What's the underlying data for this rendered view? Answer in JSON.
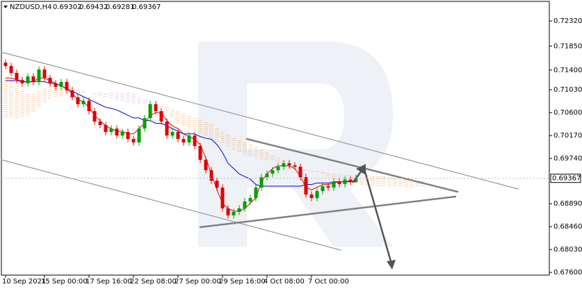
{
  "chart_data": {
    "type": "candlestick",
    "symbol": "NZDUSD,H4",
    "header_ohlc": [
      0.69302,
      0.69432,
      0.69281,
      0.69367
    ],
    "last_price": 0.69367,
    "categories": [
      "10 Sep 2021",
      null,
      null,
      null,
      null,
      null,
      null,
      "15 Sep 00:00",
      null,
      null,
      null,
      null,
      null,
      null,
      null,
      "17 Sep 16:00",
      null,
      null,
      null,
      null,
      null,
      null,
      null,
      "22 Sep 08:00",
      null,
      null,
      null,
      null,
      null,
      null,
      null,
      "27 Sep 00:00",
      null,
      null,
      null,
      null,
      null,
      null,
      null,
      "29 Sep 16:00",
      null,
      null,
      null,
      null,
      null,
      null,
      null,
      "4 Oct 08:00",
      null,
      null,
      null,
      null,
      null,
      null,
      null,
      "7 Oct 00:00",
      null,
      null,
      null,
      null,
      null,
      null,
      null,
      null,
      null,
      null,
      null,
      null,
      null,
      null,
      null,
      null,
      null,
      null,
      null,
      null
    ],
    "open": [
      0.7154,
      0.71475,
      0.71345,
      0.71214,
      0.71149,
      0.7128,
      0.71175,
      0.7141,
      0.71253,
      0.71149,
      0.71084,
      0.71175,
      0.71019,
      0.70888,
      0.70758,
      0.70823,
      0.70628,
      0.70432,
      0.70367,
      0.70236,
      0.70301,
      0.70171,
      0.70236,
      0.70106,
      0.70041,
      0.70301,
      0.70497,
      0.70758,
      0.70628,
      0.70432,
      0.70171,
      0.70236,
      0.70106,
      0.70041,
      0.70171,
      0.69975,
      0.69715,
      0.69519,
      0.69323,
      0.69193,
      0.68802,
      0.68671,
      0.68736,
      0.68802,
      0.68932,
      0.68997,
      0.69193,
      0.69389,
      0.69454,
      0.69519,
      0.69584,
      0.6965,
      0.6961,
      0.69584,
      0.69389,
      0.69062,
      0.68997,
      0.69127,
      0.69219,
      0.69193,
      0.69297,
      0.69258,
      0.69342,
      0.69302,
      null,
      null,
      null,
      null,
      null,
      null,
      null,
      null,
      null,
      null,
      null,
      null
    ],
    "high": [
      0.716,
      0.71535,
      0.71405,
      0.71274,
      0.7134,
      0.7134,
      0.7147,
      0.7147,
      0.71313,
      0.71209,
      0.71235,
      0.71235,
      0.71079,
      0.70948,
      0.70883,
      0.70883,
      0.70688,
      0.70492,
      0.70427,
      0.70361,
      0.70361,
      0.70296,
      0.70296,
      0.70166,
      0.70361,
      0.70557,
      0.70818,
      0.70818,
      0.70688,
      0.70492,
      0.70296,
      0.70296,
      0.70166,
      0.70231,
      0.70231,
      0.70035,
      0.69775,
      0.69579,
      0.69383,
      0.69253,
      0.68862,
      0.68796,
      0.68862,
      0.68992,
      0.69057,
      0.69253,
      0.69449,
      0.69514,
      0.69579,
      0.69644,
      0.6971,
      0.6971,
      0.6967,
      0.69644,
      0.69449,
      0.69122,
      0.69187,
      0.69279,
      0.69279,
      0.69357,
      0.69357,
      0.69402,
      0.69402,
      0.69432,
      null,
      null,
      null,
      null,
      null,
      null,
      null,
      null,
      null,
      null,
      null,
      null
    ],
    "low": [
      0.71415,
      0.71285,
      0.71154,
      0.71089,
      0.71089,
      0.71115,
      0.71115,
      0.71193,
      0.71089,
      0.71024,
      0.71024,
      0.70959,
      0.70828,
      0.70698,
      0.70698,
      0.70568,
      0.70372,
      0.70307,
      0.70176,
      0.70176,
      0.70111,
      0.70111,
      0.70046,
      0.69981,
      0.69981,
      0.70241,
      0.70437,
      0.70568,
      0.70372,
      0.70111,
      0.70111,
      0.70046,
      0.69981,
      0.69981,
      0.69915,
      0.69655,
      0.69459,
      0.69263,
      0.69133,
      0.68742,
      0.68611,
      0.68611,
      0.68676,
      0.68742,
      0.68872,
      0.68937,
      0.69133,
      0.69329,
      0.69394,
      0.69459,
      0.69524,
      0.6955,
      0.69524,
      0.69329,
      0.69002,
      0.68937,
      0.68937,
      0.69067,
      0.69133,
      0.69133,
      0.69198,
      0.69198,
      0.69237,
      0.69281,
      null,
      null,
      null,
      null,
      null,
      null,
      null,
      null,
      null,
      null,
      null,
      null
    ],
    "close": [
      0.71475,
      0.71345,
      0.71214,
      0.71149,
      0.7128,
      0.71175,
      0.7141,
      0.71253,
      0.71149,
      0.71084,
      0.71175,
      0.71019,
      0.70888,
      0.70758,
      0.70823,
      0.70628,
      0.70432,
      0.70367,
      0.70236,
      0.70301,
      0.70171,
      0.70236,
      0.70106,
      0.70041,
      0.70301,
      0.70497,
      0.70758,
      0.70628,
      0.70432,
      0.70171,
      0.70236,
      0.70106,
      0.70041,
      0.70171,
      0.69975,
      0.69715,
      0.69519,
      0.69323,
      0.69193,
      0.68802,
      0.68671,
      0.68736,
      0.68802,
      0.68932,
      0.68997,
      0.69193,
      0.69389,
      0.69454,
      0.69519,
      0.69584,
      0.6965,
      0.6961,
      0.69584,
      0.69389,
      0.69062,
      0.68997,
      0.69127,
      0.69219,
      0.69193,
      0.69297,
      0.69258,
      0.69342,
      0.69297,
      0.69367,
      null,
      null,
      null,
      null,
      null,
      null,
      null,
      null,
      null,
      null,
      null,
      null
    ],
    "up_color": "#00a000",
    "down_color": "#e00000",
    "lines": [
      {
        "color": "#e00000",
        "values": [
          0.7125,
          0.7125,
          0.7122,
          0.7118,
          0.7118,
          0.7118,
          0.7125,
          0.7125,
          0.712,
          0.7115,
          0.711,
          0.7105,
          0.7095,
          0.7085,
          0.708,
          0.707,
          0.7055,
          0.7045,
          0.7035,
          0.703,
          0.7025,
          0.7025,
          0.702,
          0.702,
          0.703,
          0.704,
          0.7055,
          0.706,
          0.706,
          0.7045,
          0.7035,
          0.703,
          0.702,
          0.7015,
          0.701,
          0.7,
          0.6975,
          0.6945,
          0.6915,
          0.689,
          0.688,
          0.6875,
          0.6875,
          0.688,
          0.689,
          0.69,
          0.693,
          0.6945,
          0.6955,
          0.696,
          0.696,
          0.696,
          0.6955,
          0.694,
          0.692,
          0.6915,
          0.692,
          0.6925,
          0.6925,
          0.6928,
          0.693,
          0.693,
          0.6932,
          0.6932,
          null,
          null,
          null,
          null,
          null,
          null,
          null,
          null,
          null,
          null,
          null,
          null
        ]
      },
      {
        "color": "#0000e0",
        "values": [
          0.712,
          0.712,
          0.712,
          0.7118,
          0.7118,
          0.7118,
          0.7118,
          0.7118,
          0.7115,
          0.7115,
          0.711,
          0.7105,
          0.71,
          0.7095,
          0.709,
          0.7085,
          0.708,
          0.7075,
          0.707,
          0.7068,
          0.7065,
          0.706,
          0.7055,
          0.705,
          0.705,
          0.7045,
          0.7045,
          0.704,
          0.704,
          0.7035,
          0.703,
          0.7025,
          0.702,
          0.702,
          0.702,
          0.7015,
          0.7012,
          0.701,
          0.7,
          0.6985,
          0.6965,
          0.6955,
          0.6945,
          0.694,
          0.6935,
          0.6925,
          0.6922,
          0.6922,
          0.6922,
          0.6922,
          0.6922,
          0.6922,
          0.6922,
          0.6922,
          0.6925,
          0.6925,
          0.6928,
          0.6928,
          0.6928,
          0.693,
          0.693,
          0.693,
          0.693,
          0.693,
          null,
          null,
          null,
          null,
          null,
          null,
          null,
          null,
          null,
          null,
          null,
          null
        ]
      }
    ],
    "cloud": {
      "up_color": "#f4a460",
      "down_color": "#dda0dd",
      "span_a": [
        0.7125,
        0.712,
        0.711,
        0.71,
        0.7095,
        0.7095,
        0.71,
        0.7105,
        0.7108,
        0.711,
        0.711,
        0.7108,
        0.7105,
        0.7102,
        0.71,
        0.7098,
        0.7095,
        0.7092,
        0.709,
        0.7088,
        0.7085,
        0.7082,
        0.708,
        0.7078,
        0.7078,
        0.7078,
        0.7076,
        0.7074,
        0.7072,
        0.707,
        0.7066,
        0.7062,
        0.7058,
        0.7054,
        0.705,
        0.7046,
        0.7042,
        0.7038,
        0.703,
        0.7024,
        0.7018,
        0.7012,
        0.7008,
        0.7004,
        0.7,
        0.6995,
        0.699,
        0.6985,
        0.698,
        0.6975,
        0.697,
        0.6965,
        0.696,
        0.6955,
        0.6952,
        0.695,
        0.695,
        0.6948,
        0.6946,
        0.6945,
        0.6944,
        0.6943,
        0.6942,
        0.6942,
        0.6942,
        0.6942,
        0.6941,
        0.694,
        0.694,
        0.6938,
        0.6936,
        0.6935,
        0.6934,
        0.6933,
        0.6932,
        0.6931
      ],
      "span_b": [
        0.705,
        0.705,
        0.705,
        0.7052,
        0.7055,
        0.706,
        0.707,
        0.708,
        0.7085,
        0.7088,
        0.709,
        0.7092,
        0.7095,
        0.7096,
        0.7098,
        0.7098,
        0.7098,
        0.7098,
        0.7098,
        0.7098,
        0.7098,
        0.7098,
        0.7097,
        0.7095,
        0.709,
        0.7085,
        0.708,
        0.7075,
        0.707,
        0.706,
        0.705,
        0.704,
        0.7035,
        0.703,
        0.7025,
        0.702,
        0.7015,
        0.701,
        0.7005,
        0.7,
        0.6995,
        0.699,
        0.6985,
        0.698,
        0.6978,
        0.6975,
        0.6972,
        0.697,
        0.6968,
        0.6966,
        0.6964,
        0.6962,
        0.696,
        0.6958,
        0.6955,
        0.6952,
        0.6948,
        0.6944,
        0.694,
        0.6936,
        0.6933,
        0.693,
        0.6928,
        0.6926,
        0.6925,
        0.6924,
        0.6923,
        0.6922,
        0.6922,
        0.6921,
        0.692,
        0.692,
        0.692,
        0.692,
        0.692,
        0.692
      ]
    },
    "ylim": [
      0.6755,
      0.7261
    ],
    "yticks": [
      {
        "value": 0.7232,
        "label": "0.72320"
      },
      {
        "value": 0.7185,
        "label": "0.71850"
      },
      {
        "value": 0.714,
        "label": "0.71400"
      },
      {
        "value": 0.7103,
        "label": "0.71030"
      },
      {
        "value": 0.706,
        "label": "0.70600"
      },
      {
        "value": 0.7017,
        "label": "0.70170"
      },
      {
        "value": 0.6974,
        "label": "0.69740"
      },
      {
        "value": 0.6889,
        "label": "0.68890"
      },
      {
        "value": 0.6846,
        "label": "0.68460"
      },
      {
        "value": 0.6803,
        "label": "0.68030"
      },
      {
        "value": 0.676,
        "label": "0.67600"
      }
    ],
    "grid": false
  }
}
